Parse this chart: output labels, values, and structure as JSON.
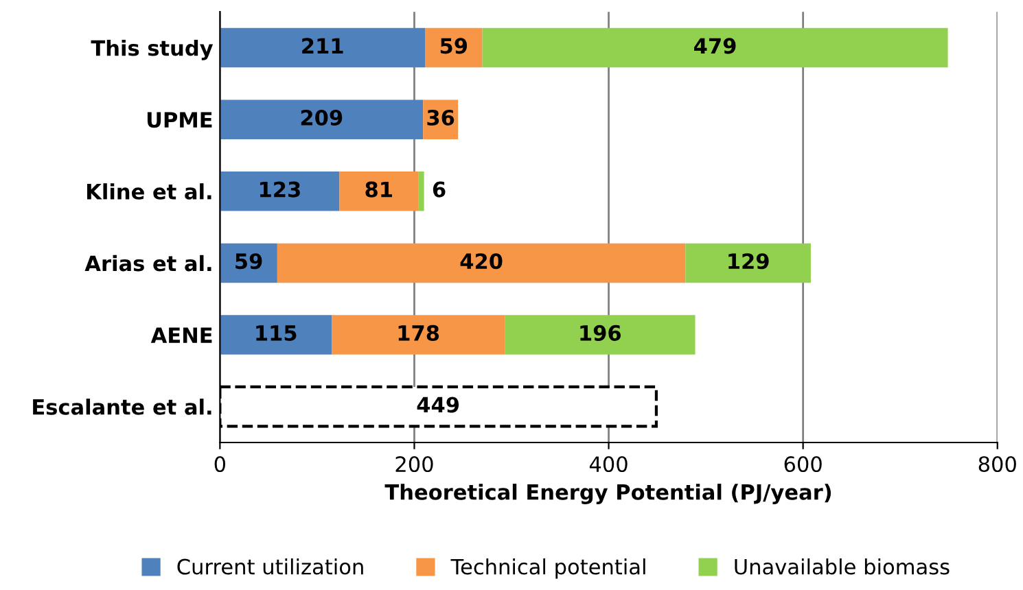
{
  "chart_data": {
    "type": "bar",
    "orientation": "horizontal",
    "stacked": true,
    "xlabel": "Theoretical Energy Potential (PJ/year)",
    "categories": [
      "This study",
      "UPME",
      "Kline et al.",
      "Arias et al.",
      "AENE",
      "Escalante et al."
    ],
    "series": [
      {
        "name": "Current utilization",
        "color": "#4f81bd",
        "values": [
          211,
          209,
          123,
          59,
          115,
          null
        ]
      },
      {
        "name": "Technical potential",
        "color": "#f79646",
        "values": [
          59,
          36,
          81,
          420,
          178,
          null
        ]
      },
      {
        "name": "Unavailable biomass",
        "color": "#92d050",
        "values": [
          479,
          null,
          6,
          129,
          196,
          null
        ]
      },
      {
        "color": "#ffffff",
        "line_style": "dashed",
        "values": [
          null,
          null,
          null,
          null,
          null,
          449
        ]
      }
    ],
    "xlim": [
      0,
      800
    ],
    "xticks": [
      0,
      200,
      400,
      600,
      800
    ],
    "grid": "x",
    "legend": "bottom",
    "data_labels": true
  }
}
